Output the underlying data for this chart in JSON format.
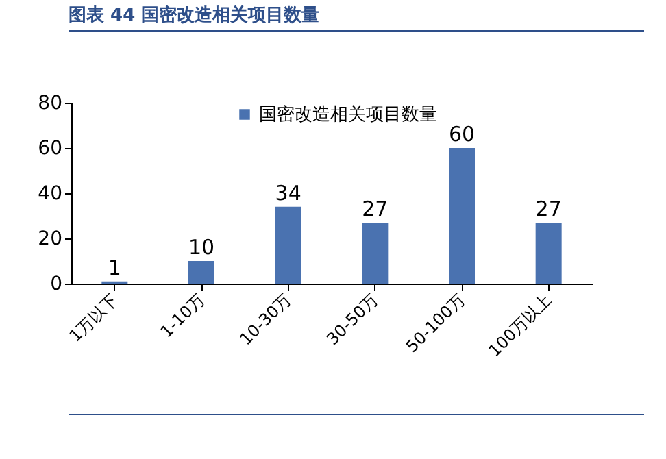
{
  "chart_data": {
    "type": "bar",
    "title": "图表 44 国密改造相关项目数量",
    "categories": [
      "1万以下",
      "1-10万",
      "10-30万",
      "30-50万",
      "50-100万",
      "100万以上"
    ],
    "series": [
      {
        "name": "国密改造相关项目数量",
        "color": "#4a72b0",
        "values": [
          1,
          10,
          34,
          27,
          60,
          27
        ]
      }
    ],
    "ylim": [
      0,
      80
    ],
    "yticks": [
      0,
      20,
      40,
      60,
      80
    ],
    "data_labels": true,
    "legend": "top",
    "grid": false
  }
}
